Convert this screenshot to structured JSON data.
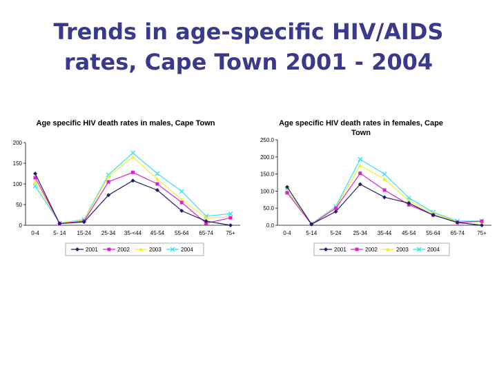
{
  "slide": {
    "title_line1": "Trends in age-specific HIV/AIDS",
    "title_line2": "rates, Cape Town 2001 - 2004",
    "title_color": "#3a3a8c"
  },
  "series_colors": {
    "2001": "#1f1f6b",
    "2002": "#e020c8",
    "2003": "#f2ef2a",
    "2004": "#35e0f0"
  },
  "series_markers": {
    "2001": "diamond",
    "2002": "square",
    "2003": "triangle",
    "2004": "x"
  },
  "chart_data": [
    {
      "type": "line",
      "title_lines": [
        "Age specific HIV death rates in males, Cape Town"
      ],
      "categories": [
        "0-4",
        "5- 14",
        "15-24",
        "25-34",
        "35-<44",
        "45-54",
        "55-64",
        "65-74",
        "75+"
      ],
      "yticks": [
        "0",
        "50",
        "100",
        "150",
        "200"
      ],
      "ylim": [
        0,
        200
      ],
      "series": [
        {
          "name": "2001",
          "values": [
            125,
            4,
            8,
            73,
            108,
            85,
            35,
            10,
            0
          ]
        },
        {
          "name": "2002",
          "values": [
            115,
            4,
            10,
            105,
            128,
            100,
            55,
            5,
            18
          ]
        },
        {
          "name": "2003",
          "values": [
            105,
            5,
            12,
            118,
            165,
            112,
            62,
            18,
            20
          ]
        },
        {
          "name": "2004",
          "values": [
            95,
            5,
            14,
            122,
            175,
            125,
            82,
            22,
            28
          ]
        }
      ]
    },
    {
      "type": "line",
      "title_lines": [
        "Age specific HIV death rates in females, Cape",
        "Town"
      ],
      "categories": [
        "0-4",
        "5-14",
        "5-24",
        "25-34",
        "35-44",
        "45-54",
        "55-64",
        "65-74",
        "75+"
      ],
      "yticks": [
        "0.0",
        "50.0",
        "100.0",
        "150.0",
        "200.0",
        "250.0"
      ],
      "ylim": [
        0,
        250
      ],
      "series": [
        {
          "name": "2001",
          "values": [
            112,
            3,
            40,
            120,
            82,
            65,
            30,
            8,
            0
          ]
        },
        {
          "name": "2002",
          "values": [
            95,
            3,
            50,
            152,
            103,
            60,
            30,
            8,
            12
          ]
        },
        {
          "name": "2003",
          "values": [
            100,
            3,
            52,
            175,
            135,
            72,
            35,
            10,
            10
          ]
        },
        {
          "name": "2004",
          "values": [
            102,
            4,
            55,
            193,
            150,
            80,
            38,
            12,
            12
          ]
        }
      ]
    }
  ]
}
